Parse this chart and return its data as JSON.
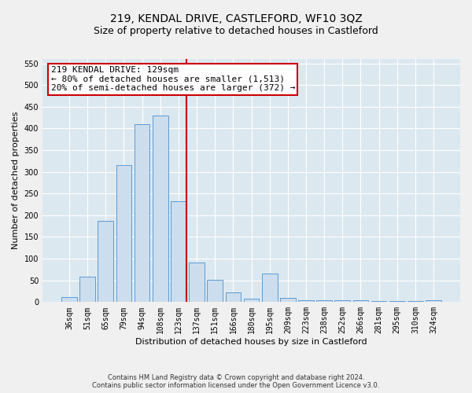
{
  "title": "219, KENDAL DRIVE, CASTLEFORD, WF10 3QZ",
  "subtitle": "Size of property relative to detached houses in Castleford",
  "xlabel": "Distribution of detached houses by size in Castleford",
  "ylabel": "Number of detached properties",
  "categories": [
    "36sqm",
    "51sqm",
    "65sqm",
    "79sqm",
    "94sqm",
    "108sqm",
    "123sqm",
    "137sqm",
    "151sqm",
    "166sqm",
    "180sqm",
    "195sqm",
    "209sqm",
    "223sqm",
    "238sqm",
    "252sqm",
    "266sqm",
    "281sqm",
    "295sqm",
    "310sqm",
    "324sqm"
  ],
  "values": [
    12,
    58,
    187,
    315,
    410,
    430,
    232,
    92,
    52,
    22,
    8,
    65,
    10,
    5,
    5,
    5,
    5,
    2,
    2,
    2,
    5
  ],
  "bar_color": "#ccdded",
  "bar_edge_color": "#5b9bd5",
  "vline_color": "#cc0000",
  "annotation_text": "219 KENDAL DRIVE: 129sqm\n← 80% of detached houses are smaller (1,513)\n20% of semi-detached houses are larger (372) →",
  "annotation_box_color": "#ffffff",
  "annotation_box_edge": "#cc0000",
  "ylim": [
    0,
    560
  ],
  "yticks": [
    0,
    50,
    100,
    150,
    200,
    250,
    300,
    350,
    400,
    450,
    500,
    550
  ],
  "background_color": "#dce8f0",
  "fig_background": "#f0f0f0",
  "footer_line1": "Contains HM Land Registry data © Crown copyright and database right 2024.",
  "footer_line2": "Contains public sector information licensed under the Open Government Licence v3.0.",
  "title_fontsize": 10,
  "subtitle_fontsize": 9,
  "xlabel_fontsize": 8,
  "ylabel_fontsize": 8,
  "tick_fontsize": 7,
  "annotation_fontsize": 8,
  "footer_fontsize": 6
}
